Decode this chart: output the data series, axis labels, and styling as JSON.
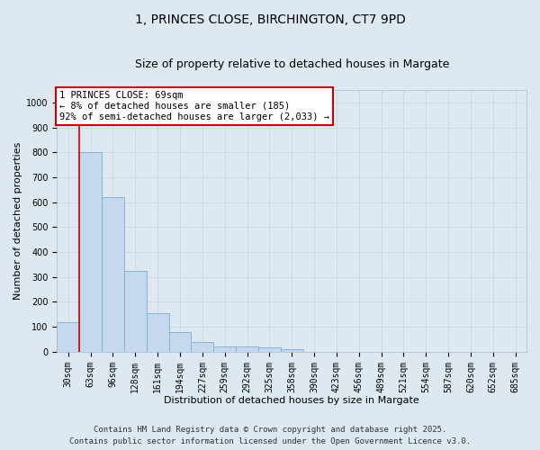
{
  "title1": "1, PRINCES CLOSE, BIRCHINGTON, CT7 9PD",
  "title2": "Size of property relative to detached houses in Margate",
  "xlabel": "Distribution of detached houses by size in Margate",
  "ylabel": "Number of detached properties",
  "categories": [
    "30sqm",
    "63sqm",
    "96sqm",
    "128sqm",
    "161sqm",
    "194sqm",
    "227sqm",
    "259sqm",
    "292sqm",
    "325sqm",
    "358sqm",
    "390sqm",
    "423sqm",
    "456sqm",
    "489sqm",
    "521sqm",
    "554sqm",
    "587sqm",
    "620sqm",
    "652sqm",
    "685sqm"
  ],
  "values": [
    120,
    800,
    620,
    325,
    155,
    80,
    38,
    22,
    20,
    18,
    12,
    0,
    0,
    0,
    0,
    0,
    0,
    0,
    0,
    0,
    0
  ],
  "bar_color": "#c5d8ee",
  "bar_edge_color": "#7aadd4",
  "vline_x_index": 1,
  "vline_color": "#cc0000",
  "annotation_text": "1 PRINCES CLOSE: 69sqm\n← 8% of detached houses are smaller (185)\n92% of semi-detached houses are larger (2,033) →",
  "annotation_box_facecolor": "#ffffff",
  "annotation_box_edgecolor": "#cc0000",
  "ylim": [
    0,
    1050
  ],
  "yticks": [
    0,
    100,
    200,
    300,
    400,
    500,
    600,
    700,
    800,
    900,
    1000
  ],
  "grid_color": "#c8d4e0",
  "bg_color": "#dde8f0",
  "plot_bg_color": "#dde8f0",
  "footer1": "Contains HM Land Registry data © Crown copyright and database right 2025.",
  "footer2": "Contains public sector information licensed under the Open Government Licence v3.0.",
  "title_fontsize": 10,
  "subtitle_fontsize": 9,
  "axis_label_fontsize": 8,
  "tick_fontsize": 7,
  "annotation_fontsize": 7.5,
  "footer_fontsize": 6.5
}
